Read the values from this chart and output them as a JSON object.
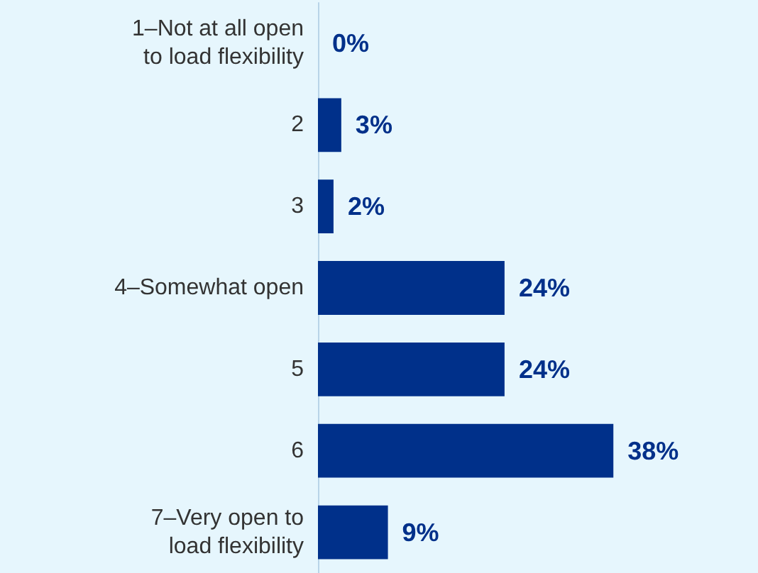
{
  "chart_data": {
    "type": "bar",
    "orientation": "horizontal",
    "categories": [
      "1–Not at all open\nto load flexibility",
      "2",
      "3",
      "4–Somewhat open",
      "5",
      "6",
      "7–Very open to\nload flexibility"
    ],
    "values": [
      0,
      3,
      2,
      24,
      24,
      38,
      9
    ],
    "value_labels": [
      "0%",
      "3%",
      "2%",
      "24%",
      "24%",
      "38%",
      "9%"
    ],
    "color": "#00308a"
  }
}
